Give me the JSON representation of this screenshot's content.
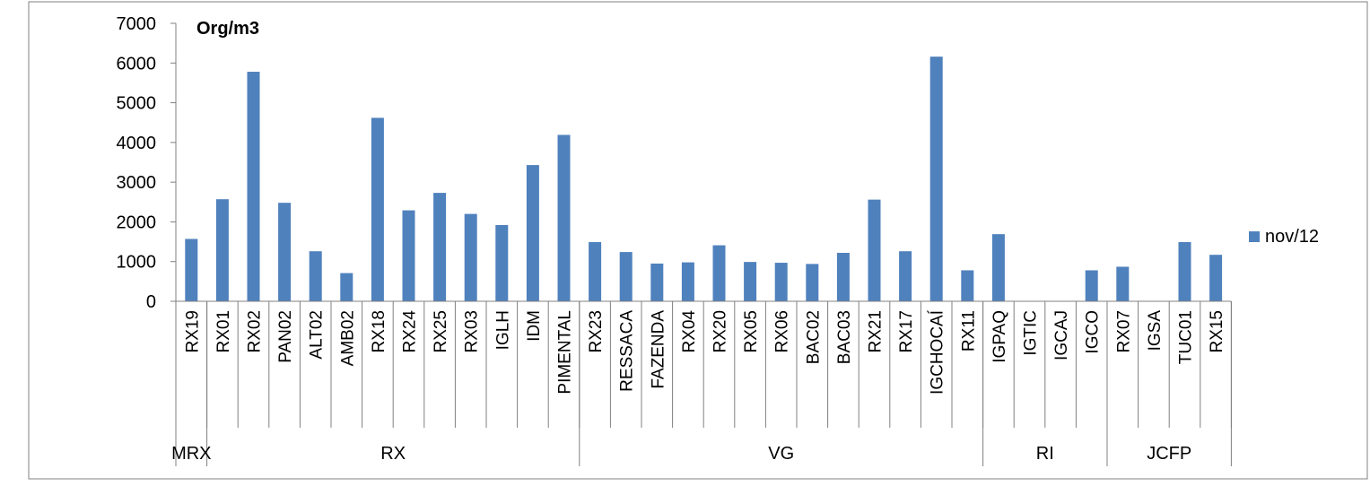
{
  "chart_data": {
    "type": "bar",
    "ylabel": "Org/m3",
    "ylim": [
      0,
      7000
    ],
    "yticks": [
      0,
      1000,
      2000,
      3000,
      4000,
      5000,
      6000,
      7000
    ],
    "grid": false,
    "legend_position": "right",
    "bar_color": "#4F81BD",
    "categories": [
      "RX19",
      "RX01",
      "RX02",
      "PAN02",
      "ALT02",
      "AMB02",
      "RX18",
      "RX24",
      "RX25",
      "RX03",
      "IGLH",
      "IDM",
      "PIMENTAL",
      "RX23",
      "RESSACA",
      "FAZENDA",
      "RX04",
      "RX20",
      "RX05",
      "RX06",
      "BAC02",
      "BAC03",
      "RX21",
      "RX17",
      "IGCHOCAÍ",
      "RX11",
      "IGPAQ",
      "IGTIC",
      "IGCAJ",
      "IGCO",
      "RX07",
      "IGSA",
      "TUC01",
      "RX15"
    ],
    "groups": [
      {
        "label": "MRX",
        "count": 1
      },
      {
        "label": "RX",
        "count": 12
      },
      {
        "label": "VG",
        "count": 13
      },
      {
        "label": "RI",
        "count": 4
      },
      {
        "label": "JCFP",
        "count": 4
      }
    ],
    "series": [
      {
        "name": "nov/12",
        "values": [
          1570,
          2570,
          5780,
          2480,
          1260,
          710,
          4620,
          2290,
          2730,
          2200,
          1920,
          3430,
          4190,
          1490,
          1240,
          950,
          980,
          1410,
          990,
          970,
          940,
          1220,
          2560,
          1260,
          6160,
          780,
          1690,
          0,
          0,
          780,
          870,
          0,
          1490,
          1170
        ]
      }
    ]
  }
}
